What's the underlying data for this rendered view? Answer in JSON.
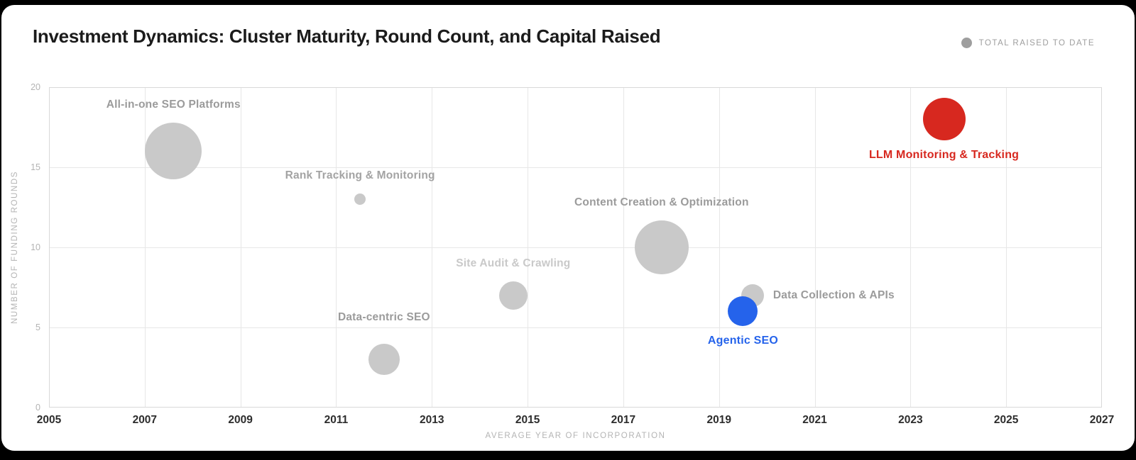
{
  "page": {
    "background_color": "#000000",
    "card_color": "#ffffff"
  },
  "header": {
    "title": "Investment Dynamics: Cluster Maturity, Round Count, and Capital Raised",
    "legend": {
      "label": "TOTAL RAISED TO DATE",
      "swatch_color": "#9e9e9e"
    }
  },
  "chart_data": {
    "type": "scatter",
    "variant": "bubble",
    "title": "Investment Dynamics: Cluster Maturity, Round Count, and Capital Raised",
    "xlabel": "AVERAGE YEAR OF INCORPORATION",
    "ylabel": "NUMBER OF FUNDING ROUNDS",
    "size_legend": "TOTAL RAISED TO DATE",
    "xlim": [
      2005,
      2027
    ],
    "ylim": [
      0,
      20
    ],
    "x_ticks": [
      2005,
      2007,
      2009,
      2011,
      2013,
      2015,
      2017,
      2019,
      2021,
      2023,
      2025,
      2027
    ],
    "y_ticks": [
      0,
      5,
      10,
      15,
      20
    ],
    "grid": true,
    "colors": {
      "default_bubble": "#c9c9c9",
      "highlight_blue": "#2563eb",
      "highlight_red": "#d7281f"
    },
    "points": [
      {
        "label": "All-in-one SEO Platforms",
        "x": 2007.6,
        "y": 16,
        "radius_px": 40,
        "color": "#c9c9c9",
        "label_color": "#9b9b9b",
        "label_placement": "above",
        "label_dy": 0
      },
      {
        "label": "Rank Tracking & Monitoring",
        "x": 2011.5,
        "y": 13,
        "radius_px": 8,
        "color": "#c9c9c9",
        "label_color": "#a3a3a3",
        "label_placement": "above",
        "label_dy": 0
      },
      {
        "label": "Data-centric SEO",
        "x": 2012.0,
        "y": 3,
        "radius_px": 22,
        "color": "#c9c9c9",
        "label_color": "#9b9b9b",
        "label_placement": "above",
        "label_dy": -12
      },
      {
        "label": "Site Audit & Crawling",
        "x": 2014.7,
        "y": 7,
        "radius_px": 20,
        "color": "#c9c9c9",
        "label_color": "#c9c9c9",
        "label_placement": "above",
        "label_dy": 0
      },
      {
        "label": "Content Creation & Optimization",
        "x": 2017.8,
        "y": 10,
        "radius_px": 38,
        "color": "#c9c9c9",
        "label_color": "#9b9b9b",
        "label_placement": "above",
        "label_dy": 0
      },
      {
        "label": "Data Collection & APIs",
        "x": 2019.7,
        "y": 7,
        "radius_px": 16,
        "color": "#c9c9c9",
        "label_color": "#9b9b9b",
        "label_placement": "right",
        "label_dy": 0
      },
      {
        "label": "Agentic SEO",
        "x": 2019.5,
        "y": 6,
        "radius_px": 21,
        "color": "#2563eb",
        "label_color": "#2563eb",
        "label_placement": "below",
        "label_dy": 0
      },
      {
        "label": "LLM Monitoring & Tracking",
        "x": 2023.7,
        "y": 18,
        "radius_px": 30,
        "color": "#d7281f",
        "label_color": "#d7281f",
        "label_placement": "below",
        "label_dy": 0
      }
    ]
  }
}
